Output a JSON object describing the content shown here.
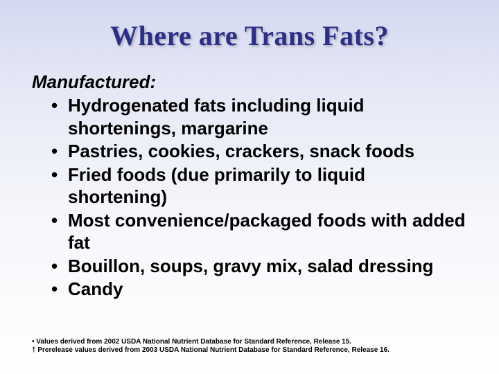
{
  "title": "Where are Trans Fats?",
  "subheading": "Manufactured:",
  "bullets": [
    "Hydrogenated fats including liquid shortenings, margarine",
    "Pastries, cookies, crackers, snack foods",
    "Fried foods (due primarily to liquid shortening)",
    "Most convenience/packaged foods with added fat",
    "Bouillon, soups, gravy mix, salad dressing",
    "Candy"
  ],
  "footnotes": [
    "• Values derived from 2002 USDA National Nutrient Database for Standard Reference, Release 15.",
    "† Prerelease values derived from 2003 USDA National Nutrient Database for Standard Reference, Release 16."
  ],
  "colors": {
    "title_color": "#2b2f8a",
    "text_color": "#000000",
    "bg_top": "#d4d9f0",
    "bg_bottom": "#ffffff"
  },
  "fonts": {
    "title_family": "Georgia, Times New Roman, serif",
    "body_family": "Arial, Helvetica, sans-serif",
    "title_size_pt": 30,
    "body_size_pt": 20,
    "footnote_size_pt": 8
  }
}
